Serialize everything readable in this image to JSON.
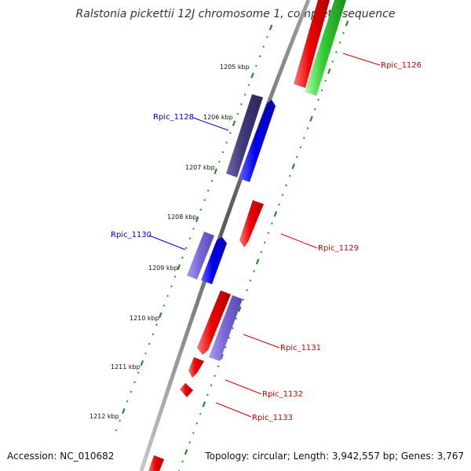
{
  "title": "Ralstonia pickettii 12J chromosome 1, complete sequence",
  "footer": {
    "accession": "Accession: NC_010682",
    "topology": "Topology: circular; Length: 3,942,557 bp; Genes: 3,767"
  },
  "ruler_ticks": [
    {
      "label": "1205 kbp"
    },
    {
      "label": "1206 kbp"
    },
    {
      "label": "1207 kbp"
    },
    {
      "label": "1208 kbp"
    },
    {
      "label": "1209 kbp"
    },
    {
      "label": "1210 kbp"
    },
    {
      "label": "1211 kbp"
    },
    {
      "label": "1212 kbp"
    }
  ],
  "gene_labels": [
    {
      "name": "Rpic_1126",
      "color": "#cc0000"
    },
    {
      "name": "Rpic_1128",
      "color": "#0000cc"
    },
    {
      "name": "Rpic_1129",
      "color": "#cc0000"
    },
    {
      "name": "Rpic_1130",
      "color": "#0000cc"
    },
    {
      "name": "Rpic_1131",
      "color": "#cc0000"
    },
    {
      "name": "Rpic_1132",
      "color": "#cc0000"
    },
    {
      "name": "Rpic_1133",
      "color": "#cc0000"
    }
  ],
  "colors": {
    "backbone": "#7a7a7a",
    "ruler_dots": "#2a8a2a",
    "forward_cds": "#ee0000",
    "reverse_cds": "#0000ee",
    "reverse_cds_light": "#7a6ad8",
    "reverse_cds_dark": "#3f3a7a",
    "rna": "#33cc33"
  }
}
